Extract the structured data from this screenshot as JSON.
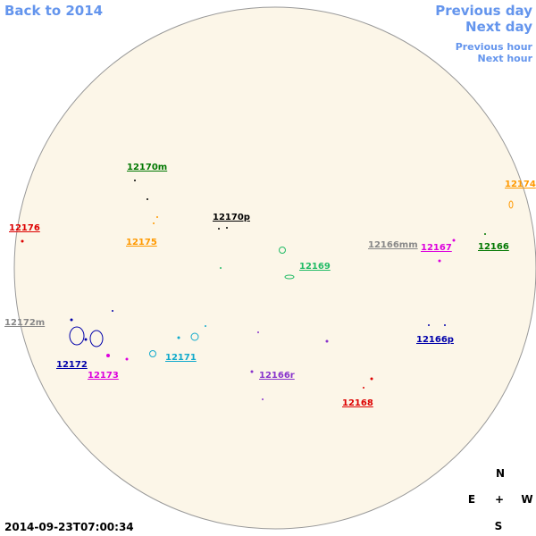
{
  "navigation": {
    "back": "Back to 2014",
    "previous_day": "Previous day",
    "next_day": "Next day",
    "previous_hour": "Previous hour",
    "next_hour": "Next hour"
  },
  "regions": [
    {
      "label": "12170m"
    },
    {
      "label": "12176"
    },
    {
      "label": "12175"
    },
    {
      "label": "12170p"
    },
    {
      "label": "12166mm"
    },
    {
      "label": "12167"
    },
    {
      "label": "12166"
    },
    {
      "label": "12174"
    },
    {
      "label": "12169"
    },
    {
      "label": "12172m"
    },
    {
      "label": "12166p"
    },
    {
      "label": "12172"
    },
    {
      "label": "12173"
    },
    {
      "label": "12171"
    },
    {
      "label": "12166r"
    },
    {
      "label": "12168"
    }
  ],
  "compass": {
    "north": "N",
    "east": "E",
    "center": "+",
    "west": "W",
    "south": "S"
  },
  "timestamp": "2014-09-23T07:00:34"
}
